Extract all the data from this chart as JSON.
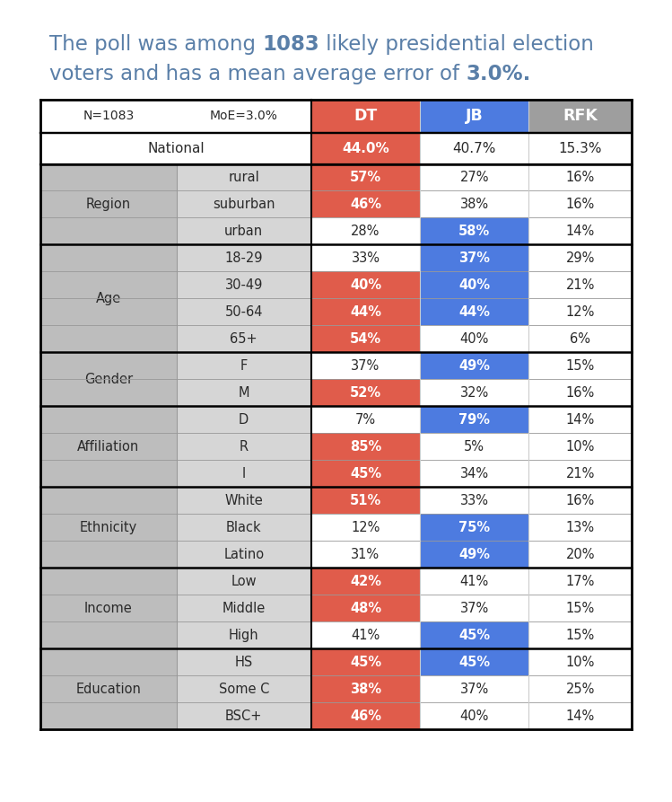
{
  "title_color": "#5a7fa8",
  "title_fontsize": 16.5,
  "header_left_text": "N=1083",
  "header_mid_text": "MoE=3.0%",
  "header_dt": "DT",
  "header_jb": "JB",
  "header_rfk": "RFK",
  "national_label": "National",
  "national_dt": "44.0%",
  "national_jb": "40.7%",
  "national_rfk": "15.3%",
  "rows": [
    [
      "Region",
      "rural",
      "57%",
      "27%",
      "16%"
    ],
    [
      "",
      "suburban",
      "46%",
      "38%",
      "16%"
    ],
    [
      "",
      "urban",
      "28%",
      "58%",
      "14%"
    ],
    [
      "Age",
      "18-29",
      "33%",
      "37%",
      "29%"
    ],
    [
      "",
      "30-49",
      "40%",
      "40%",
      "21%"
    ],
    [
      "",
      "50-64",
      "44%",
      "44%",
      "12%"
    ],
    [
      "",
      "65+",
      "54%",
      "40%",
      "6%"
    ],
    [
      "Gender",
      "F",
      "37%",
      "49%",
      "15%"
    ],
    [
      "",
      "M",
      "52%",
      "32%",
      "16%"
    ],
    [
      "Affiliation",
      "D",
      "7%",
      "79%",
      "14%"
    ],
    [
      "",
      "R",
      "85%",
      "5%",
      "10%"
    ],
    [
      "",
      "I",
      "45%",
      "34%",
      "21%"
    ],
    [
      "Ethnicity",
      "White",
      "51%",
      "33%",
      "16%"
    ],
    [
      "",
      "Black",
      "12%",
      "75%",
      "13%"
    ],
    [
      "",
      "Latino",
      "31%",
      "49%",
      "20%"
    ],
    [
      "Income",
      "Low",
      "42%",
      "41%",
      "17%"
    ],
    [
      "",
      "Middle",
      "48%",
      "37%",
      "15%"
    ],
    [
      "",
      "High",
      "41%",
      "45%",
      "15%"
    ],
    [
      "Education",
      "HS",
      "45%",
      "45%",
      "10%"
    ],
    [
      "",
      "Some C",
      "38%",
      "37%",
      "25%"
    ],
    [
      "",
      "BSC+",
      "46%",
      "40%",
      "14%"
    ]
  ],
  "row_highlights": [
    [
      true,
      false
    ],
    [
      true,
      false
    ],
    [
      false,
      true
    ],
    [
      false,
      true
    ],
    [
      true,
      true
    ],
    [
      true,
      true
    ],
    [
      true,
      false
    ],
    [
      false,
      true
    ],
    [
      true,
      false
    ],
    [
      false,
      true
    ],
    [
      true,
      false
    ],
    [
      true,
      false
    ],
    [
      true,
      false
    ],
    [
      false,
      true
    ],
    [
      false,
      true
    ],
    [
      true,
      false
    ],
    [
      true,
      false
    ],
    [
      false,
      true
    ],
    [
      true,
      true
    ],
    [
      true,
      false
    ],
    [
      true,
      false
    ]
  ],
  "group_starts": [
    0,
    3,
    7,
    9,
    12,
    15,
    18
  ],
  "red_color": "#e05c4b",
  "blue_color": "#4d7be0",
  "header_gray": "#9e9e9e",
  "group_gray": "#bdbdbd",
  "sub_gray": "#d6d6d6",
  "white": "#ffffff",
  "black": "#000000",
  "text_dark": "#2a2a2a",
  "fig_width": 7.49,
  "fig_height": 8.93
}
